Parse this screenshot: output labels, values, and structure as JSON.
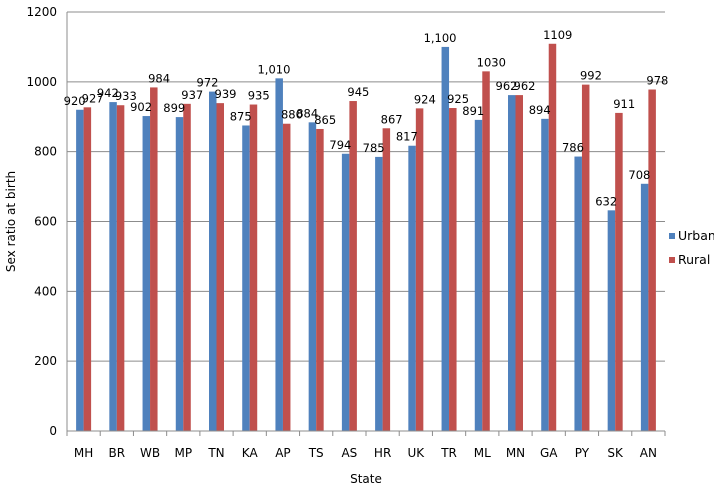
{
  "chart_data": {
    "type": "bar",
    "title": "",
    "xlabel": "State",
    "ylabel": "Sex ratio at birth",
    "ylim": [
      0,
      1200
    ],
    "yticks": [
      0,
      200,
      400,
      600,
      800,
      1000,
      1200
    ],
    "grid": true,
    "legend_position": "right",
    "categories": [
      "MH",
      "BR",
      "WB",
      "MP",
      "TN",
      "KA",
      "AP",
      "TS",
      "AS",
      "HR",
      "UK",
      "TR",
      "ML",
      "MN",
      "GA",
      "PY",
      "SK",
      "AN"
    ],
    "series": [
      {
        "name": "Urban",
        "color": "#4F81BD",
        "values": [
          920,
          942,
          902,
          899,
          972,
          875,
          1010,
          884,
          794,
          785,
          817,
          1100,
          891,
          962,
          894,
          786,
          632,
          708
        ],
        "labels": [
          "920",
          "942",
          "902",
          "899",
          "972",
          "875",
          "1,010",
          "884",
          "794",
          "785",
          "817",
          "1,100",
          "891",
          "962",
          "894",
          "786",
          "632",
          "708"
        ]
      },
      {
        "name": "Rural",
        "color": "#C0504D",
        "values": [
          927,
          933,
          984,
          937,
          939,
          935,
          880,
          865,
          945,
          867,
          924,
          925,
          1030,
          962,
          1109,
          992,
          911,
          978
        ],
        "labels": [
          "927",
          "933",
          "984",
          "937",
          "939",
          "935",
          "880",
          "865",
          "945",
          "867",
          "924",
          "925",
          "1030",
          "962",
          "1109",
          "992",
          "911",
          "978"
        ]
      }
    ]
  }
}
